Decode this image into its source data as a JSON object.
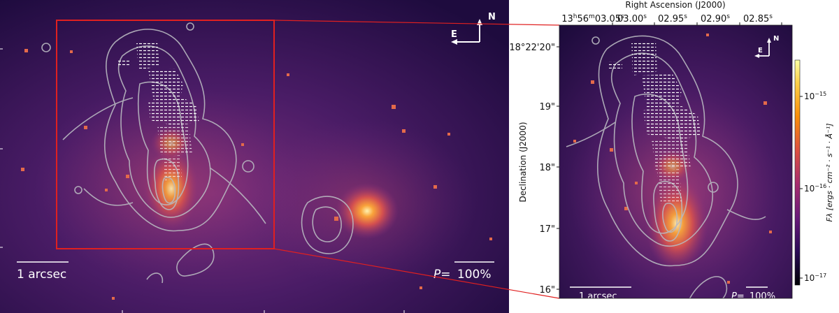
{
  "left_panel": {
    "scalebar_label": "1 arcsec",
    "pol_label_prefix": "P=",
    "pol_label_value": "100%",
    "compass": {
      "north": "N",
      "east": "E"
    }
  },
  "right_panel": {
    "scalebar_label": "1 arcsec",
    "pol_label_prefix": "P=",
    "pol_label_value": "100%",
    "compass": {
      "north": "N",
      "east": "E"
    },
    "x_axis_title": "Right Ascension (J2000)",
    "y_axis_title": "Declination (J2000)",
    "ra_ticks": [
      {
        "prefix": "13",
        "h": "h",
        "pre2": "56",
        "m": "m",
        "val": "03.05",
        "s": "s"
      },
      {
        "val": "03.00",
        "s": "s"
      },
      {
        "val": "02.95",
        "s": "s"
      },
      {
        "val": "02.90",
        "s": "s"
      },
      {
        "val": "02.85",
        "s": "s"
      }
    ],
    "dec_ticks": [
      {
        "label": "18°22'20\""
      },
      {
        "label": "19\""
      },
      {
        "label": "18\""
      },
      {
        "label": "17\""
      },
      {
        "label": "16\""
      }
    ]
  },
  "colorbar": {
    "label": "Fλ [ergs · cm⁻² · s⁻¹ · Å⁻¹]",
    "ticks": [
      {
        "base": "10",
        "exp": "−15"
      },
      {
        "base": "10",
        "exp": "−16"
      },
      {
        "base": "10",
        "exp": "−17"
      }
    ],
    "colors": [
      "#000004",
      "#2b0b57",
      "#6a1b7a",
      "#a72d6e",
      "#dd5140",
      "#f98e09",
      "#fcd04a",
      "#fcffa4"
    ]
  }
}
